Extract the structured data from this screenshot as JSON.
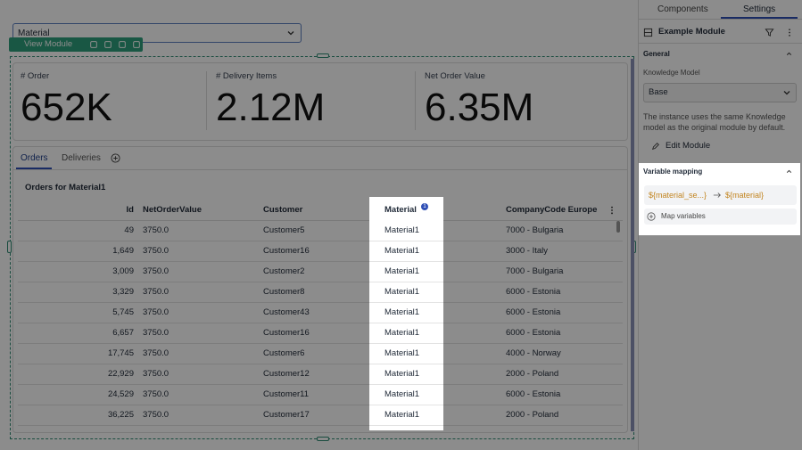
{
  "dropdown": {
    "label": "Material"
  },
  "module_toolbar": {
    "label": "View Module"
  },
  "kpis": [
    {
      "label": "# Order",
      "value": "652K"
    },
    {
      "label": "# Delivery Items",
      "value": "2.12M"
    },
    {
      "label": "Net Order Value",
      "value": "6.35M"
    }
  ],
  "tabs": [
    "Orders",
    "Deliveries"
  ],
  "table": {
    "title": "Orders for Material1",
    "columns": [
      "Id",
      "NetOrderValue",
      "Customer",
      "Material",
      "CompanyCode Europe"
    ],
    "badge": "1",
    "rows": [
      [
        "49",
        "3750.0",
        "Customer5",
        "Material1",
        "7000 - Bulgaria"
      ],
      [
        "1,649",
        "3750.0",
        "Customer16",
        "Material1",
        "3000 - Italy"
      ],
      [
        "3,009",
        "3750.0",
        "Customer2",
        "Material1",
        "7000 - Bulgaria"
      ],
      [
        "3,329",
        "3750.0",
        "Customer8",
        "Material1",
        "6000 - Estonia"
      ],
      [
        "5,745",
        "3750.0",
        "Customer43",
        "Material1",
        "6000 - Estonia"
      ],
      [
        "6,657",
        "3750.0",
        "Customer16",
        "Material1",
        "6000 - Estonia"
      ],
      [
        "17,745",
        "3750.0",
        "Customer6",
        "Material1",
        "4000 - Norway"
      ],
      [
        "22,929",
        "3750.0",
        "Customer12",
        "Material1",
        "2000 - Poland"
      ],
      [
        "24,529",
        "3750.0",
        "Customer11",
        "Material1",
        "6000 - Estonia"
      ],
      [
        "36,225",
        "3750.0",
        "Customer17",
        "Material1",
        "2000 - Poland"
      ]
    ]
  },
  "sidebar": {
    "tabs": [
      "Components",
      "Settings"
    ],
    "module_name": "Example Module",
    "general": {
      "title": "General",
      "knowledge_model_label": "Knowledge Model",
      "knowledge_model_value": "Base",
      "description": "The instance uses the same Knowledge model as the original module by default.",
      "edit_button": "Edit Module"
    },
    "variable_mapping": {
      "title": "Variable mapping",
      "source": "${material_se...}",
      "target": "${material}",
      "add_button": "Map variables"
    }
  }
}
